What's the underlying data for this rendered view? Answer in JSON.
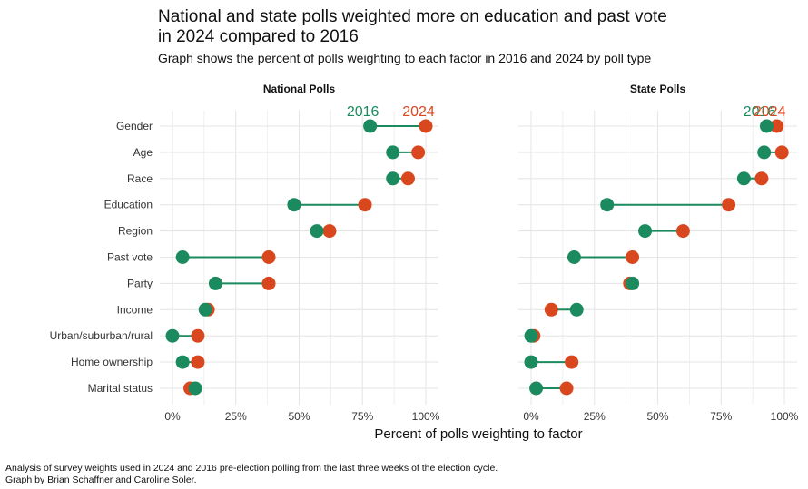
{
  "title_line1": "National and state polls weighted more on education and past vote",
  "title_line2": "in 2024 compared to 2016",
  "subtitle": "Graph shows the percent of polls weighting to each factor in 2016 and 2024 by poll type",
  "caption_line1": "Analysis of survey weights used in 2024 and 2016 pre-election polling from the last three weeks of the election cycle.",
  "caption_line2": "Graph by Brian Schaffner and Caroline Soler.",
  "colors": {
    "c2016": "#1b8a5f",
    "c2024": "#d9471f",
    "grid": "#e6e6e6",
    "text": "#333333"
  },
  "chart_data": {
    "type": "dumbbell",
    "xlabel": "Percent of polls weighting to factor",
    "xlim": [
      0,
      100
    ],
    "xticks": [
      0,
      25,
      50,
      75,
      100
    ],
    "xtick_labels": [
      "0%",
      "25%",
      "50%",
      "75%",
      "100%"
    ],
    "categories": [
      "Gender",
      "Age",
      "Race",
      "Education",
      "Region",
      "Past vote",
      "Party",
      "Income",
      "Urban/suburban/rural",
      "Home ownership",
      "Marital status"
    ],
    "series_names": [
      "2016",
      "2024"
    ],
    "panels": [
      {
        "title": "National Polls",
        "values_2016": [
          78,
          87,
          87,
          48,
          57,
          4,
          17,
          13,
          0,
          4,
          9
        ],
        "values_2024": [
          100,
          97,
          93,
          76,
          62,
          38,
          38,
          14,
          10,
          10,
          7
        ]
      },
      {
        "title": "State Polls",
        "values_2016": [
          93,
          92,
          84,
          30,
          45,
          17,
          40,
          18,
          0,
          0,
          2
        ],
        "values_2024": [
          97,
          99,
          91,
          78,
          60,
          40,
          39,
          8,
          1,
          16,
          14
        ]
      }
    ]
  }
}
